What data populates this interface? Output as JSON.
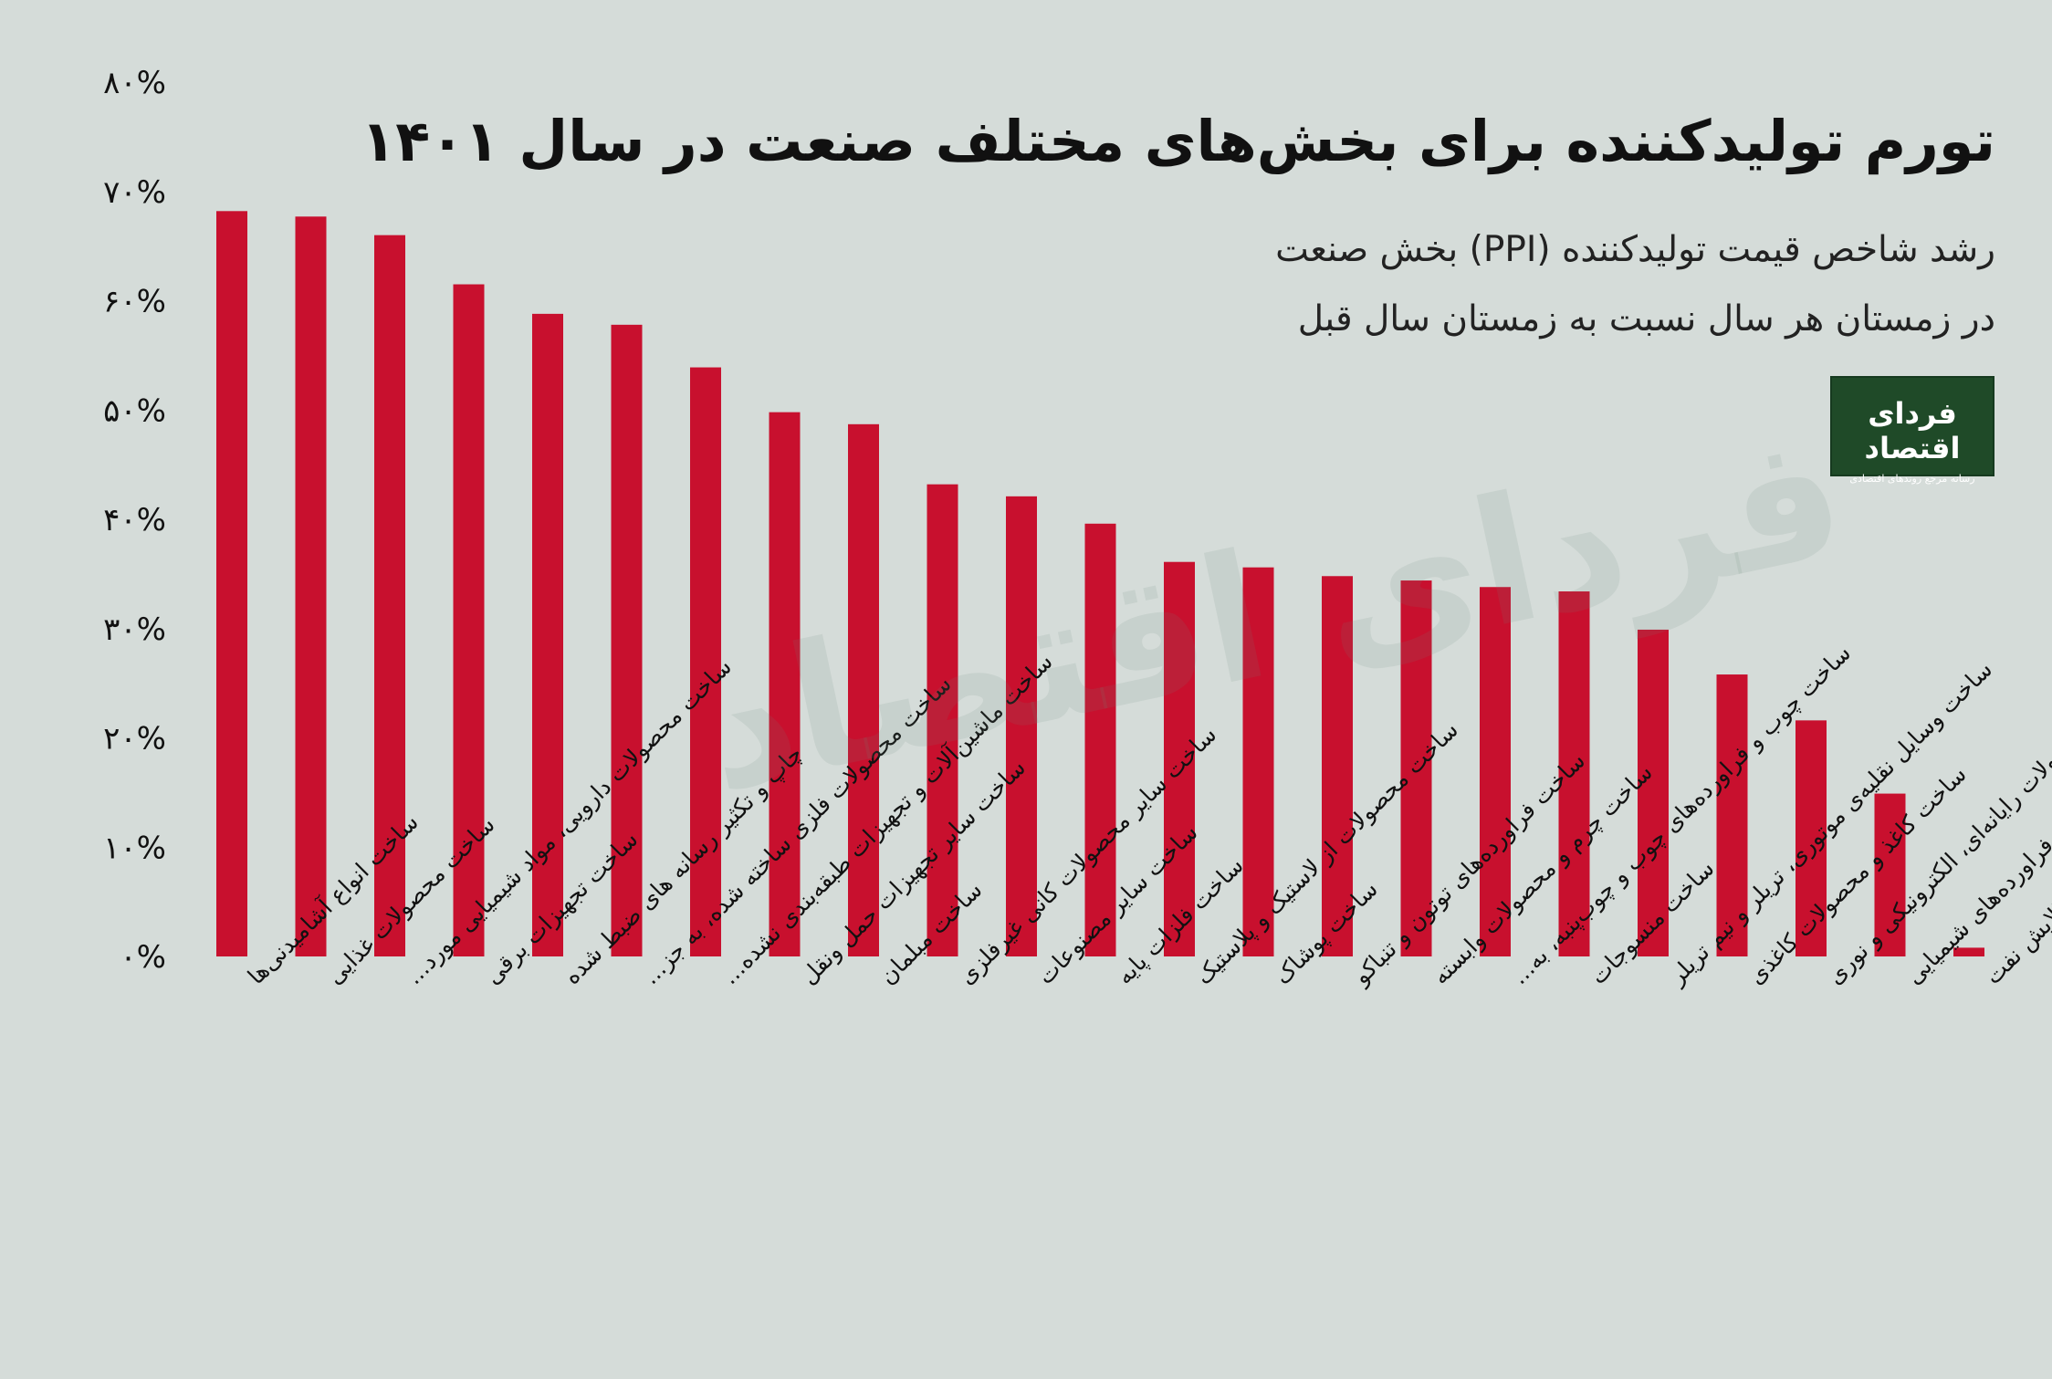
{
  "header": {
    "title": "تورم تولیدکننده برای بخش‌های مختلف صنعت در سال ۱۴۰۱",
    "subtitle_line1": "رشد شاخص قیمت تولیدکننده (PPI) بخش صنعت",
    "subtitle_line2": "در زمستان هر سال نسبت به زمستان سال قبل"
  },
  "logo": {
    "name": "فردای اقتصاد",
    "tagline": "رسانه مرجع روندهای اقتصادی"
  },
  "watermark": "فردای اقتصاد",
  "colors": {
    "background": "#d5dcd9",
    "bar": "#c8102e",
    "text": "#111111",
    "logo_bg": "#1f4a28"
  },
  "chart_data": {
    "type": "bar",
    "title": "تورم تولیدکننده برای بخش‌های مختلف صنعت در سال ۱۴۰۱",
    "xlabel": "",
    "ylabel": "",
    "ylim": [
      0,
      80
    ],
    "yticks": [
      0,
      10,
      20,
      30,
      40,
      50,
      60,
      70,
      80
    ],
    "ytick_labels": [
      "۰%",
      "۱۰%",
      "۲۰%",
      "۳۰%",
      "۴۰%",
      "۵۰%",
      "۶۰%",
      "۷۰%",
      "۸۰%"
    ],
    "grid": false,
    "categories": [
      "ساخت انواع آشامیدنی‌ها",
      "ساخت محصولات غذایی",
      "ساخت محصولات دارویی، مواد شیمیایی مورد...",
      "ساخت تجهیزات برقی",
      "چاپ و تکثیر رسانه های ضبط شده",
      "ساخت محصولات فلزی ساخته شده، به جز...",
      "ساخت ماشین‌آلات و تجهیزات طبقه‌بندی نشده...",
      "ساخت سایر تجهیزات حمل ونقل",
      "ساخت مبلمان",
      "ساخت سایر محصولات کانی غیرفلزی",
      "ساخت سایر مصنوعات",
      "ساخت فلزات پایه",
      "ساخت محصولات از لاستیک و پلاستیک",
      "ساخت پوشاک",
      "ساخت فراورده‌های توتون و تنباکو",
      "ساخت چرم و محصولات وابسته",
      "ساخت چوب و فراورده‌های چوب و چوب‌پنبه، به...",
      "ساخت منسوجات",
      "ساخت وسایل نقلیه‌ی موتوری، تریلر و نیم تریلر",
      "ساخت کاغذ و محصولات کاغذی",
      "ساخت محصولات رایانه‌ای، الکترونیکی و نوری",
      "ساخت مواد شیمیایی و فراورده‌های شیمیایی",
      "ساخت کُک و فراورده‌های حاصل از پالایش نفت"
    ],
    "values": [
      68.2,
      67.7,
      66.0,
      61.5,
      58.8,
      57.8,
      53.9,
      49.8,
      48.7,
      43.2,
      42.1,
      39.6,
      36.1,
      35.6,
      34.8,
      34.4,
      33.8,
      33.4,
      29.9,
      25.8,
      21.6,
      14.9,
      0.8
    ]
  }
}
